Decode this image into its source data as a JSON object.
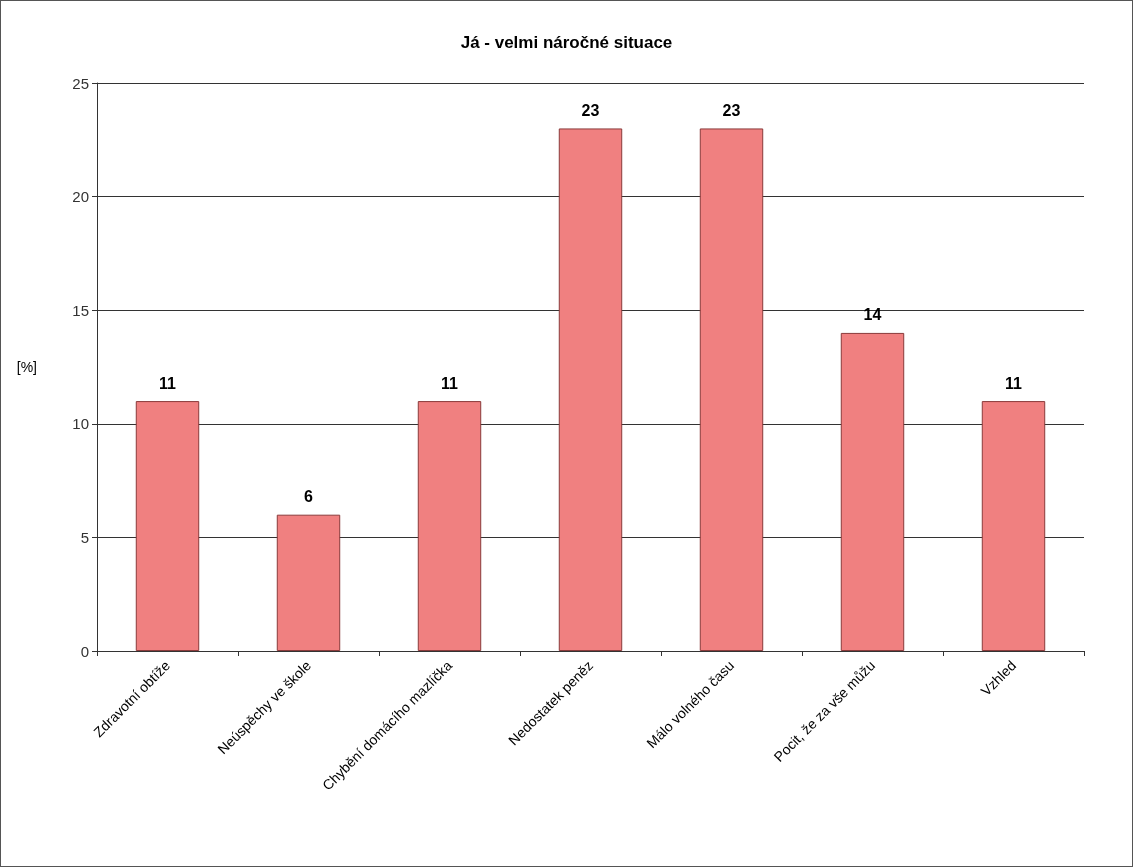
{
  "chart_data": {
    "type": "bar",
    "title": "Já - velmi náročné situace",
    "ylabel": "[%]",
    "categories": [
      "Zdravotní obtíže",
      "Neúspěchy ve škole",
      "Chybění domácího mazlíčka",
      "Nedostatek peněz",
      "Málo volného času",
      "Pocit, že za vše můžu",
      "Vzhled"
    ],
    "values": [
      11,
      6,
      11,
      23,
      23,
      14,
      11
    ],
    "color": "#f08080",
    "ylim": [
      0,
      25
    ],
    "yticks": [
      0,
      5,
      10,
      15,
      20,
      25
    ],
    "grid": "y",
    "data_labels": true
  }
}
